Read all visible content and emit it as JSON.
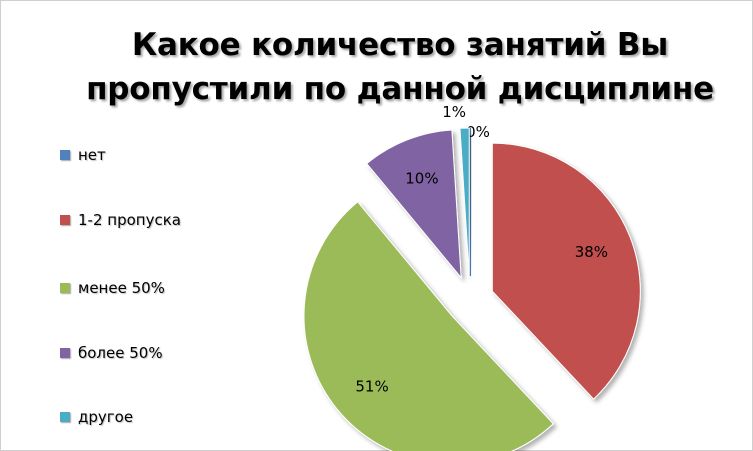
{
  "chart_data": {
    "type": "pie",
    "title": "Какое количество занятий Вы пропустили по данной дисциплине",
    "title_lines": [
      "Какое количество занятий Вы",
      "пропустили по данной дисциплине"
    ],
    "categories": [
      "нет",
      "1-2 пропуска",
      "менее 50%",
      "более 50%",
      "другое"
    ],
    "values": [
      0,
      38,
      51,
      10,
      1
    ],
    "data_labels": [
      "0%",
      "38%",
      "51%",
      "10%",
      "1%"
    ],
    "colors": [
      "#4F81BD",
      "#C0504D",
      "#9BBB59",
      "#8064A2",
      "#4BACC6"
    ],
    "exploded": true,
    "legend": "left",
    "start_angle": "top, clockwise"
  }
}
